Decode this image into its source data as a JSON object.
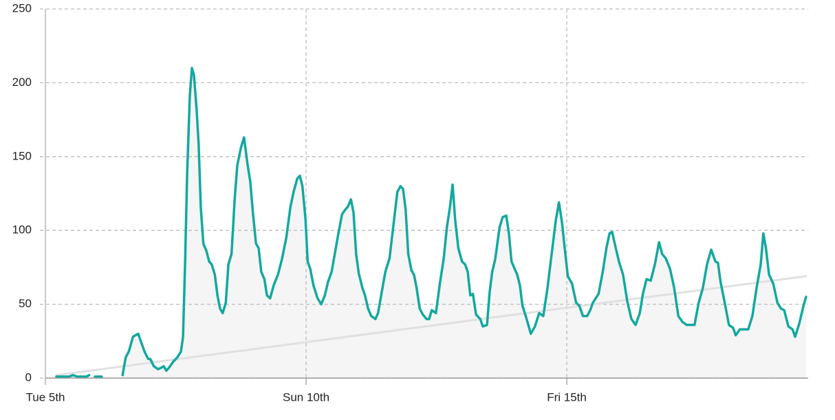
{
  "chart_data": {
    "type": "line",
    "grid": true,
    "area_color": "#f5f5f5",
    "xlim": [
      5,
      19.63
    ],
    "ylim": [
      0,
      250
    ],
    "xticks": [
      {
        "value": 5,
        "label": "Tue 5th"
      },
      {
        "value": 10,
        "label": "Sun 10th"
      },
      {
        "value": 15,
        "label": "Fri 15th"
      }
    ],
    "yticks": [
      0,
      50,
      100,
      150,
      200,
      250
    ],
    "series": [
      {
        "color": "#13a89e",
        "area": true,
        "x": [
          5.21,
          5.32,
          5.45,
          5.53,
          5.61,
          5.71,
          5.79,
          5.84,
          null,
          5.95,
          6.08,
          null,
          6.48,
          6.54,
          6.6,
          6.68,
          6.73,
          6.78,
          6.82,
          6.9,
          6.97,
          7.01,
          7.08,
          7.16,
          7.22,
          7.27,
          7.32,
          7.37,
          7.45,
          7.53,
          7.6,
          7.64,
          7.68,
          7.72,
          7.77,
          7.81,
          7.85,
          7.9,
          7.94,
          7.98,
          8.03,
          8.09,
          8.14,
          8.19,
          8.25,
          8.3,
          8.35,
          8.4,
          8.46,
          8.51,
          8.57,
          8.63,
          8.68,
          8.75,
          8.81,
          8.88,
          8.93,
          8.98,
          9.04,
          9.09,
          9.14,
          9.2,
          9.25,
          9.31,
          9.38,
          9.46,
          9.54,
          9.62,
          9.7,
          9.76,
          9.83,
          9.88,
          9.93,
          9.99,
          10.03,
          10.08,
          10.14,
          10.22,
          10.29,
          10.36,
          10.42,
          10.49,
          10.55,
          10.62,
          10.69,
          10.75,
          10.8,
          10.86,
          10.91,
          10.96,
          11.01,
          11.08,
          11.13,
          11.19,
          11.25,
          11.33,
          11.38,
          11.45,
          11.52,
          11.6,
          11.67,
          11.75,
          11.81,
          11.86,
          11.91,
          11.96,
          12.02,
          12.07,
          12.12,
          12.18,
          12.24,
          12.31,
          12.36,
          12.41,
          12.49,
          12.57,
          12.64,
          12.7,
          12.76,
          12.81,
          12.86,
          12.92,
          12.99,
          13.05,
          13.1,
          13.15,
          13.2,
          13.26,
          13.34,
          13.39,
          13.47,
          13.52,
          13.57,
          13.63,
          13.71,
          13.77,
          13.84,
          13.89,
          13.94,
          14.0,
          14.05,
          14.1,
          14.15,
          14.23,
          14.31,
          14.39,
          14.47,
          14.55,
          14.63,
          14.71,
          14.79,
          14.85,
          14.91,
          14.96,
          15.02,
          15.1,
          15.18,
          15.24,
          15.31,
          15.39,
          15.45,
          15.5,
          15.61,
          15.69,
          15.76,
          15.82,
          15.87,
          15.94,
          16.0,
          16.08,
          16.16,
          16.24,
          16.32,
          16.4,
          16.46,
          16.53,
          16.61,
          16.69,
          16.77,
          16.83,
          16.9,
          16.98,
          17.06,
          17.14,
          17.22,
          17.3,
          17.45,
          17.53,
          17.61,
          17.69,
          17.77,
          17.85,
          17.9,
          17.95,
          18.03,
          18.11,
          18.19,
          18.24,
          18.32,
          18.48,
          18.56,
          18.64,
          18.72,
          18.77,
          18.82,
          18.88,
          18.96,
          19.04,
          19.11,
          19.17,
          19.25,
          19.33,
          19.38,
          19.46,
          19.54,
          19.59
        ],
        "values": [
          1,
          1,
          1,
          2,
          1,
          1,
          1,
          2,
          null,
          1,
          1,
          null,
          2,
          14,
          18,
          28,
          29,
          30,
          26,
          18,
          13,
          13,
          8,
          6,
          7,
          8,
          5,
          7,
          11,
          14,
          18,
          28,
          79,
          140,
          191,
          210,
          205,
          182,
          158,
          116,
          91,
          86,
          79,
          77,
          70,
          56,
          47,
          44,
          51,
          77,
          84,
          121,
          144,
          156,
          163,
          144,
          133,
          112,
          91,
          88,
          72,
          67,
          56,
          54,
          63,
          70,
          81,
          95,
          116,
          126,
          135,
          137,
          130,
          107,
          79,
          74,
          63,
          54,
          50,
          56,
          65,
          72,
          84,
          98,
          111,
          114,
          116,
          121,
          112,
          84,
          71,
          61,
          56,
          47,
          42,
          40,
          44,
          58,
          72,
          81,
          102,
          126,
          130,
          128,
          114,
          84,
          73,
          70,
          61,
          47,
          43,
          40,
          40,
          46,
          44,
          65,
          81,
          102,
          116,
          131,
          107,
          88,
          79,
          77,
          72,
          56,
          57,
          43,
          40,
          35,
          36,
          58,
          72,
          81,
          102,
          109,
          110,
          98,
          79,
          74,
          70,
          63,
          49,
          40,
          30,
          35,
          44,
          42,
          61,
          84,
          107,
          119,
          105,
          88,
          69,
          64,
          51,
          49,
          42,
          42,
          46,
          51,
          57,
          72,
          88,
          98,
          99,
          88,
          79,
          70,
          52,
          40,
          36,
          44,
          57,
          67,
          66,
          77,
          92,
          84,
          81,
          74,
          61,
          42,
          38,
          36,
          36,
          51,
          61,
          77,
          87,
          79,
          78,
          65,
          51,
          36,
          34,
          29,
          33,
          33,
          42,
          61,
          77,
          98,
          88,
          70,
          64,
          51,
          47,
          46,
          35,
          33,
          28,
          37,
          49,
          55
        ]
      },
      {
        "color": "#e0e0e0",
        "x": [
          5.21,
          19.59
        ],
        "values": [
          2,
          69
        ]
      }
    ]
  }
}
